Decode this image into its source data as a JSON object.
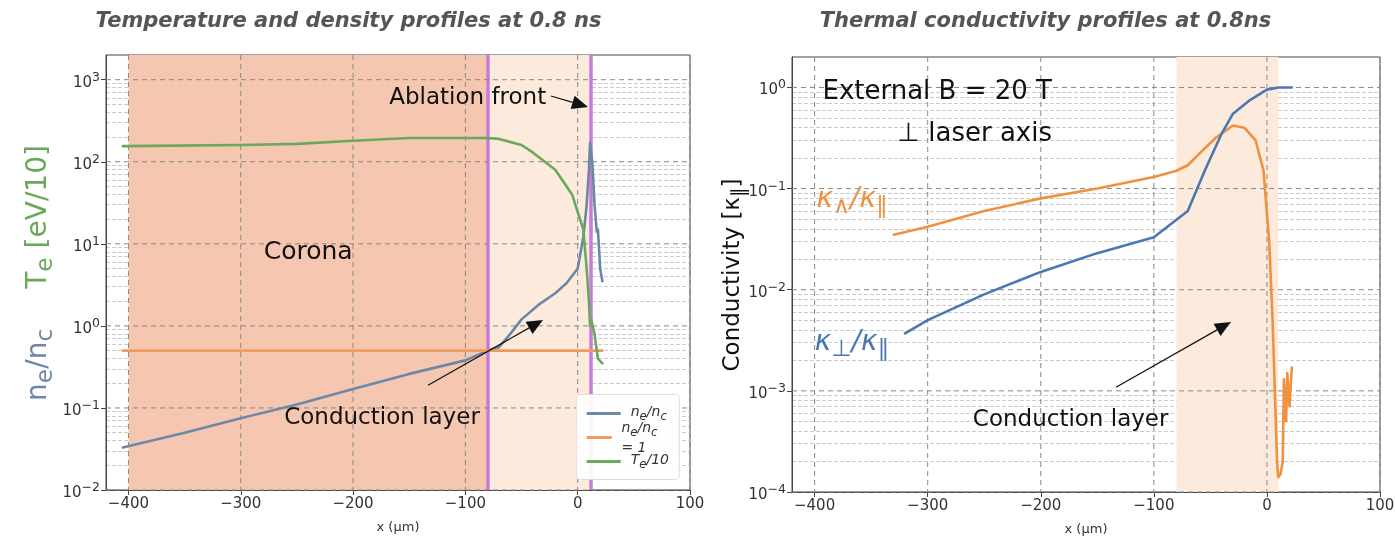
{
  "chart_data": [
    {
      "type": "line",
      "title": "Temperature and density profiles at 0.8 ns",
      "xlabel": "x (μm)",
      "ylabel": "n$_{e}$/n$_{c}$    T$_{e}$ [eV/10]",
      "log": "y",
      "grid": true,
      "legend": "bottom right",
      "marker": "none",
      "xlim": [
        -420,
        100
      ],
      "xticks": [
        {
          "value": -400,
          "label": "−400"
        },
        {
          "value": -300,
          "label": "−300"
        },
        {
          "value": -200,
          "label": "−200"
        },
        {
          "value": -100,
          "label": "−100"
        },
        {
          "value": 0,
          "label": "0"
        },
        {
          "value": 100,
          "label": "100"
        }
      ],
      "ylim": [
        0.01,
        2000
      ],
      "yticks": [
        {
          "value": 0.01,
          "label": "10$^{−2}$"
        },
        {
          "value": 0.1,
          "label": "10$^{−1}$"
        },
        {
          "value": 1,
          "label": "10$^{0}$"
        },
        {
          "value": 10,
          "label": "10$^{1}$"
        },
        {
          "value": 100,
          "label": "10$^{2}$"
        },
        {
          "value": 1000,
          "label": "10$^{3}$"
        }
      ],
      "series": [
        {
          "name": "n$_{e}$/n$_{c}$",
          "color": "#6d88a6",
          "x": [
            -405,
            -350,
            -300,
            -250,
            -200,
            -150,
            -100,
            -80,
            -70,
            -60,
            -50,
            -35,
            -20,
            -10,
            0,
            5,
            8,
            10,
            11,
            13,
            15,
            17,
            18,
            20,
            22
          ],
          "values": [
            0.033,
            0.05,
            0.075,
            0.11,
            0.17,
            0.26,
            0.38,
            0.5,
            0.55,
            0.8,
            1.2,
            1.8,
            2.5,
            3.3,
            5,
            12,
            30,
            80,
            170,
            100,
            30,
            14,
            15,
            5,
            3.5
          ]
        },
        {
          "name": "n$_{e}$/n$_{c}$ = 1",
          "color": "#ef9a5e",
          "x": [
            -405,
            22
          ],
          "values": [
            0.5,
            0.5
          ]
        },
        {
          "name": "T$_{e}$/10",
          "color": "#6aa85c",
          "x": [
            -405,
            -300,
            -250,
            -200,
            -150,
            -80,
            -70,
            -50,
            -40,
            -20,
            -5,
            5,
            8,
            10,
            11,
            12,
            15,
            17,
            18,
            22
          ],
          "values": [
            155,
            160,
            165,
            180,
            195,
            195,
            190,
            160,
            130,
            80,
            40,
            15,
            5,
            2,
            1,
            1.2,
            0.8,
            0.5,
            0.4,
            0.35
          ]
        }
      ],
      "bands": [
        {
          "axis": "x",
          "from": -400,
          "to": -80,
          "label": "Corona",
          "color": "#f5c6b0"
        },
        {
          "axis": "x",
          "from": -80,
          "to": 12,
          "label": "Conduction layer",
          "color": "#fcebdc"
        }
      ],
      "ref_lines": [
        {
          "axis": "x",
          "value": -80,
          "color": "#c77dd8"
        },
        {
          "axis": "x",
          "value": 12,
          "label": "Ablation front",
          "color": "#c77dd8"
        }
      ]
    },
    {
      "type": "line",
      "title": "Thermal conductivity profiles at 0.8ns",
      "ylabel": "Conductivity [κ$_{∥}$]",
      "xlabel": "x (μm)",
      "log": "y",
      "grid": true,
      "marker": "none",
      "xlim": [
        -420,
        100
      ],
      "xticks": [
        {
          "value": -400,
          "label": "−400"
        },
        {
          "value": -300,
          "label": "−300"
        },
        {
          "value": -200,
          "label": "−200"
        },
        {
          "value": -100,
          "label": "−100"
        },
        {
          "value": 0,
          "label": "0"
        },
        {
          "value": 100,
          "label": "100"
        }
      ],
      "ylim": [
        0.0001,
        2
      ],
      "yticks": [
        {
          "value": 0.0001,
          "label": "10$^{−4}$"
        },
        {
          "value": 0.001,
          "label": "10$^{−3}$"
        },
        {
          "value": 0.01,
          "label": "10$^{−2}$"
        },
        {
          "value": 0.1,
          "label": "10$^{−1}$"
        },
        {
          "value": 1,
          "label": "10$^{0}$"
        }
      ],
      "series": [
        {
          "name": "κ$_{∧}$/κ$_{∥}$",
          "color": "#ef9240",
          "x": [
            -330,
            -300,
            -250,
            -200,
            -150,
            -100,
            -80,
            -70,
            -60,
            -45,
            -30,
            -20,
            -10,
            -3,
            2,
            5,
            7,
            9,
            10,
            12,
            14,
            15,
            17,
            18,
            20,
            22
          ],
          "values": [
            0.035,
            0.042,
            0.06,
            0.08,
            0.1,
            0.13,
            0.15,
            0.17,
            0.22,
            0.32,
            0.42,
            0.4,
            0.3,
            0.15,
            0.03,
            0.005,
            0.001,
            0.0002,
            0.00014,
            0.00015,
            0.0002,
            0.0013,
            0.0005,
            0.0015,
            0.0007,
            0.0017
          ]
        },
        {
          "name": "κ$_{⊥}$/κ$_{∥}$",
          "color": "#4a78b0",
          "x": [
            -320,
            -300,
            -250,
            -200,
            -150,
            -100,
            -70,
            -55,
            -40,
            -30,
            -15,
            0,
            10,
            22
          ],
          "values": [
            0.0037,
            0.005,
            0.009,
            0.015,
            0.023,
            0.033,
            0.06,
            0.15,
            0.35,
            0.55,
            0.75,
            0.95,
            1.0,
            1.0
          ]
        }
      ],
      "bands": [
        {
          "axis": "x",
          "from": -80,
          "to": 10,
          "label": "Conduction layer",
          "color": "#fcebdc"
        }
      ],
      "annotations": [
        "External B = 20 T\n⊥ laser axis"
      ]
    }
  ]
}
